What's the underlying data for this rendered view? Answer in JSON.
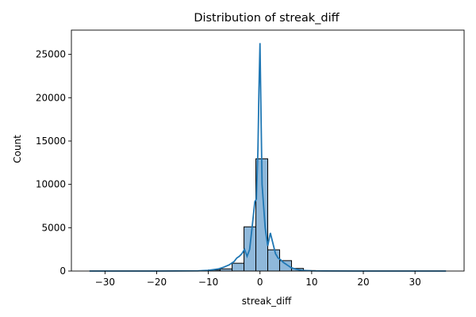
{
  "chart_data": {
    "type": "bar",
    "title": "Distribution of streak_diff",
    "xlabel": "streak_diff",
    "ylabel": "Count",
    "xlim": [
      -36.5,
      39.5
    ],
    "ylim": [
      0,
      27800
    ],
    "x_ticks": [
      -30,
      -20,
      -10,
      0,
      10,
      20,
      30
    ],
    "x_tick_labels": [
      "−30",
      "−20",
      "−10",
      "0",
      "10",
      "20",
      "30"
    ],
    "y_ticks": [
      0,
      5000,
      10000,
      15000,
      20000,
      25000
    ],
    "y_tick_labels": [
      "0",
      "5000",
      "10000",
      "15000",
      "20000",
      "25000"
    ],
    "bin_edges": [
      -33,
      -30.7,
      -28.4,
      -26.1,
      -23.8,
      -21.5,
      -19.2,
      -16.9,
      -14.6,
      -12.3,
      -10,
      -7.7,
      -5.4,
      -3.1,
      -0.8,
      1.5,
      3.8,
      6.1,
      8.4,
      10.7,
      13,
      15.3,
      17.6,
      19.9,
      22.2,
      24.5,
      26.8,
      29.1,
      31.4,
      33.7,
      36
    ],
    "counts": [
      0,
      0,
      0,
      0,
      0,
      0,
      0,
      0,
      5,
      30,
      120,
      250,
      900,
      5100,
      12950,
      2450,
      1200,
      300,
      60,
      15,
      5,
      0,
      0,
      0,
      0,
      0,
      0,
      0,
      0,
      0
    ],
    "kde": {
      "x": [
        -33,
        -20,
        -12,
        -10,
        -8,
        -7,
        -6,
        -5.5,
        -5,
        -4.5,
        -4,
        -3.5,
        -3,
        -2.5,
        -2,
        -1.5,
        -1,
        -0.7,
        -0.4,
        -0.2,
        0,
        0.2,
        0.4,
        0.7,
        1,
        1.5,
        2,
        2.5,
        3,
        3.5,
        4,
        4.5,
        5,
        5.5,
        6,
        7,
        8,
        10,
        12,
        20,
        36
      ],
      "y": [
        0,
        0,
        20,
        80,
        250,
        450,
        700,
        900,
        1100,
        1500,
        1700,
        2000,
        2500,
        1700,
        2500,
        5200,
        8000,
        8300,
        14000,
        21000,
        26300,
        18000,
        10000,
        7500,
        5000,
        2900,
        4400,
        3200,
        2000,
        1500,
        1300,
        1000,
        800,
        600,
        400,
        200,
        80,
        20,
        10,
        0,
        0
      ]
    },
    "colors": {
      "bar_fill": "#8fb8da",
      "bar_edge": "#000000",
      "kde_line": "#1f77b4"
    },
    "grid": false,
    "legend": "none"
  }
}
